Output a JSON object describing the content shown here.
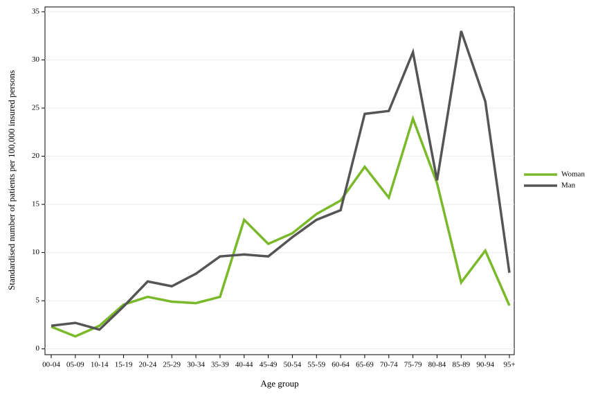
{
  "chart_data": {
    "type": "line",
    "xlabel": "Age group",
    "ylabel": "Standardised number of patients per 100,000 insured persons",
    "categories": [
      "00-04",
      "05-09",
      "10-14",
      "15-19",
      "20-24",
      "25-29",
      "30-34",
      "35-39",
      "40-44",
      "45-49",
      "50-54",
      "55-59",
      "60-64",
      "65-69",
      "70-74",
      "75-79",
      "80-84",
      "85-89",
      "90-94",
      "95+"
    ],
    "series": [
      {
        "name": "Woman",
        "color": "#7ab929",
        "values": [
          2.3,
          1.3,
          2.4,
          4.6,
          5.4,
          4.9,
          4.75,
          5.4,
          13.4,
          10.9,
          12.0,
          14.0,
          15.4,
          18.9,
          15.7,
          23.9,
          17.2,
          6.9,
          10.2,
          4.5
        ]
      },
      {
        "name": "Man",
        "color": "#555555",
        "values": [
          2.4,
          2.7,
          2.0,
          4.4,
          7.0,
          6.5,
          7.8,
          9.6,
          9.8,
          9.6,
          11.6,
          13.4,
          14.4,
          24.4,
          24.7,
          30.8,
          17.5,
          33.0,
          25.7,
          7.9
        ]
      }
    ],
    "ylim": [
      -0.6,
      35.5
    ],
    "yticks": [
      0,
      5,
      10,
      15,
      20,
      25,
      30,
      35
    ],
    "grid": true,
    "legend": "right"
  }
}
